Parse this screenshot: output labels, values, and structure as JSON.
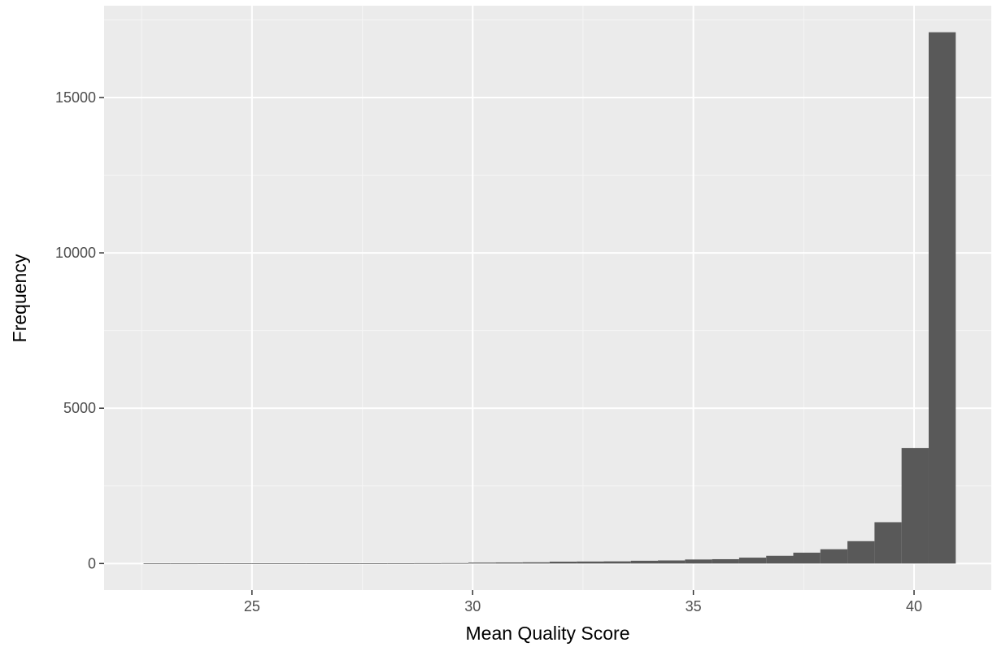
{
  "chart_data": {
    "type": "bar",
    "subtype": "histogram",
    "title": "",
    "xlabel": "Mean Quality Score",
    "ylabel": "Frequency",
    "xlim": [
      21.65,
      41.75
    ],
    "ylim": [
      -855,
      17955
    ],
    "x_ticks": [
      25,
      30,
      35,
      40
    ],
    "y_ticks": [
      0,
      5000,
      10000,
      15000
    ],
    "x_minor_ticks": [
      22.5,
      27.5,
      32.5,
      37.5
    ],
    "y_minor_ticks": [
      2500,
      7500,
      12500,
      17500
    ],
    "bin_width": 0.6133,
    "bins": [
      {
        "x0": 22.544,
        "x1": 23.157,
        "count": 2
      },
      {
        "x0": 23.157,
        "x1": 23.771,
        "count": 2
      },
      {
        "x0": 23.771,
        "x1": 24.384,
        "count": 3
      },
      {
        "x0": 24.384,
        "x1": 24.997,
        "count": 3
      },
      {
        "x0": 24.997,
        "x1": 25.611,
        "count": 4
      },
      {
        "x0": 25.611,
        "x1": 26.224,
        "count": 4
      },
      {
        "x0": 26.224,
        "x1": 26.837,
        "count": 5
      },
      {
        "x0": 26.837,
        "x1": 27.451,
        "count": 6
      },
      {
        "x0": 27.451,
        "x1": 28.064,
        "count": 7
      },
      {
        "x0": 28.064,
        "x1": 28.677,
        "count": 9
      },
      {
        "x0": 28.677,
        "x1": 29.291,
        "count": 11
      },
      {
        "x0": 29.291,
        "x1": 29.904,
        "count": 14
      },
      {
        "x0": 29.904,
        "x1": 30.517,
        "count": 30
      },
      {
        "x0": 30.517,
        "x1": 31.131,
        "count": 35
      },
      {
        "x0": 31.131,
        "x1": 31.744,
        "count": 40
      },
      {
        "x0": 31.744,
        "x1": 32.357,
        "count": 60
      },
      {
        "x0": 32.357,
        "x1": 32.971,
        "count": 65
      },
      {
        "x0": 32.971,
        "x1": 33.584,
        "count": 70
      },
      {
        "x0": 33.584,
        "x1": 34.197,
        "count": 90
      },
      {
        "x0": 34.197,
        "x1": 34.811,
        "count": 100
      },
      {
        "x0": 34.811,
        "x1": 35.424,
        "count": 130
      },
      {
        "x0": 35.424,
        "x1": 36.037,
        "count": 140
      },
      {
        "x0": 36.037,
        "x1": 36.651,
        "count": 190
      },
      {
        "x0": 36.651,
        "x1": 37.264,
        "count": 250
      },
      {
        "x0": 37.264,
        "x1": 37.877,
        "count": 350
      },
      {
        "x0": 37.877,
        "x1": 38.491,
        "count": 460
      },
      {
        "x0": 38.491,
        "x1": 39.104,
        "count": 720
      },
      {
        "x0": 39.104,
        "x1": 39.717,
        "count": 1330
      },
      {
        "x0": 39.717,
        "x1": 40.331,
        "count": 3720
      },
      {
        "x0": 40.331,
        "x1": 40.944,
        "count": 17100
      }
    ],
    "grid": true,
    "colors": {
      "panel_background": "#ebebeb",
      "grid_major": "#ffffff",
      "grid_minor": "#f5f5f5",
      "bar_fill": "#595959",
      "tick_color": "#333333"
    }
  }
}
